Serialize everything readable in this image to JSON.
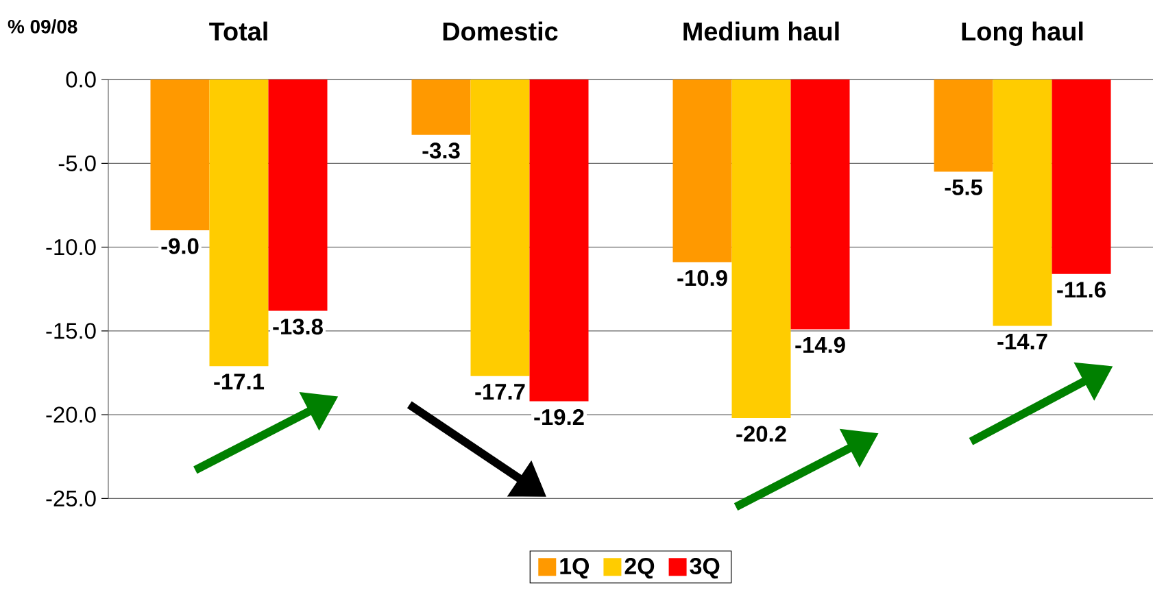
{
  "chart_data": {
    "type": "bar",
    "ylabel": "% 09/08",
    "categories": [
      "Total",
      "Domestic",
      "Medium haul",
      "Long haul"
    ],
    "series": [
      {
        "name": "1Q",
        "color": "#ff9900",
        "values": [
          -9.0,
          -3.3,
          -10.9,
          -5.5
        ],
        "value_labels": [
          "-9.0",
          "-3.3",
          "-10.9",
          "-5.5"
        ]
      },
      {
        "name": "2Q",
        "color": "#ffcc00",
        "values": [
          -17.1,
          -17.7,
          -20.2,
          -14.7
        ],
        "value_labels": [
          "-17.1",
          "-17.7",
          "-20.2",
          "-14.7"
        ]
      },
      {
        "name": "3Q",
        "color": "#ff0000",
        "values": [
          -13.8,
          -19.2,
          -14.9,
          -11.6
        ],
        "value_labels": [
          "-13.8",
          "-19.2",
          "-14.9",
          "-11.6"
        ]
      }
    ],
    "ylim": [
      -25,
      0
    ],
    "yticks": [
      {
        "value": 0,
        "label": "0.0"
      },
      {
        "value": -5,
        "label": "-5.0"
      },
      {
        "value": -10,
        "label": "-10.0"
      },
      {
        "value": -15,
        "label": "-15.0"
      },
      {
        "value": -20,
        "label": "-20.0"
      },
      {
        "value": -25,
        "label": "-25.0"
      }
    ],
    "grid": "y",
    "legend": "bottom"
  }
}
